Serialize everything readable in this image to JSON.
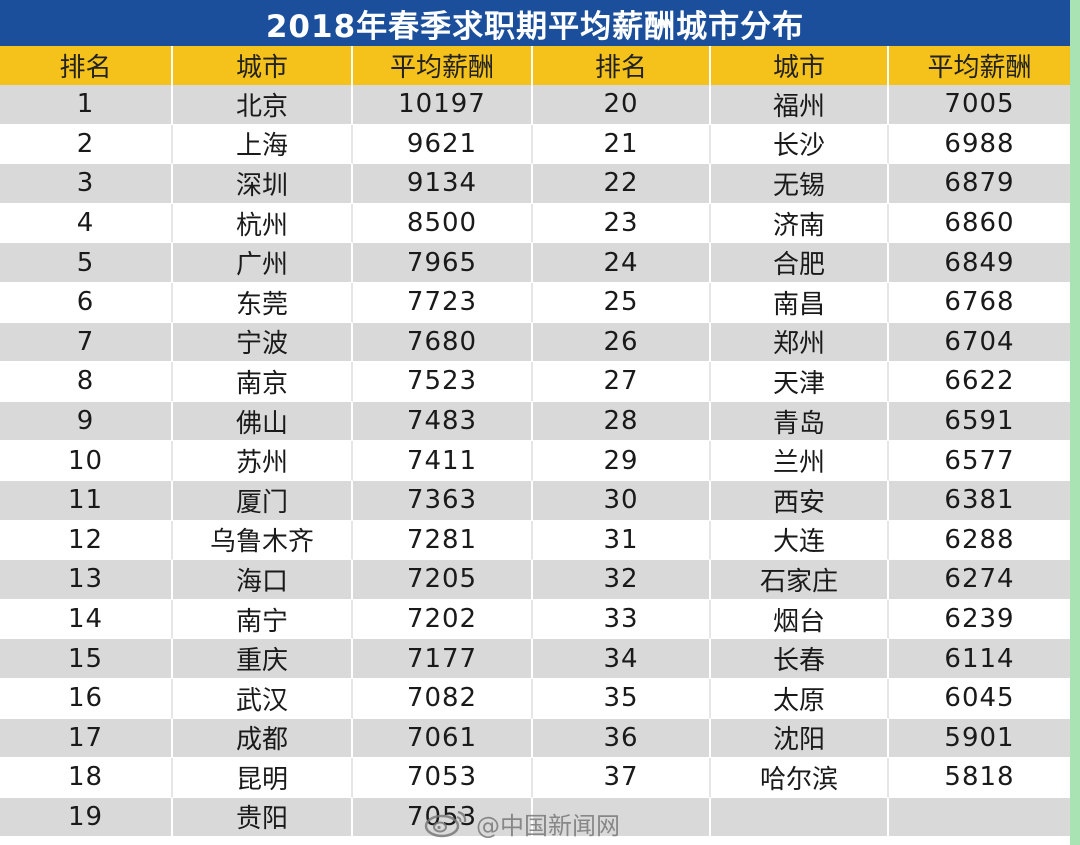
{
  "title": "2018年春季求职期平均薪酬城市分布",
  "headers": [
    "排名",
    "城市",
    "平均薪酬",
    "排名",
    "城市",
    "平均薪酬"
  ],
  "rows": [
    [
      {
        "rank": "1",
        "city": "北京",
        "salary": "10197"
      },
      {
        "rank": "20",
        "city": "福州",
        "salary": "7005"
      }
    ],
    [
      {
        "rank": "2",
        "city": "上海",
        "salary": "9621"
      },
      {
        "rank": "21",
        "city": "长沙",
        "salary": "6988"
      }
    ],
    [
      {
        "rank": "3",
        "city": "深圳",
        "salary": "9134"
      },
      {
        "rank": "22",
        "city": "无锡",
        "salary": "6879"
      }
    ],
    [
      {
        "rank": "4",
        "city": "杭州",
        "salary": "8500"
      },
      {
        "rank": "23",
        "city": "济南",
        "salary": "6860"
      }
    ],
    [
      {
        "rank": "5",
        "city": "广州",
        "salary": "7965"
      },
      {
        "rank": "24",
        "city": "合肥",
        "salary": "6849"
      }
    ],
    [
      {
        "rank": "6",
        "city": "东莞",
        "salary": "7723"
      },
      {
        "rank": "25",
        "city": "南昌",
        "salary": "6768"
      }
    ],
    [
      {
        "rank": "7",
        "city": "宁波",
        "salary": "7680"
      },
      {
        "rank": "26",
        "city": "郑州",
        "salary": "6704"
      }
    ],
    [
      {
        "rank": "8",
        "city": "南京",
        "salary": "7523"
      },
      {
        "rank": "27",
        "city": "天津",
        "salary": "6622"
      }
    ],
    [
      {
        "rank": "9",
        "city": "佛山",
        "salary": "7483"
      },
      {
        "rank": "28",
        "city": "青岛",
        "salary": "6591"
      }
    ],
    [
      {
        "rank": "10",
        "city": "苏州",
        "salary": "7411"
      },
      {
        "rank": "29",
        "city": "兰州",
        "salary": "6577"
      }
    ],
    [
      {
        "rank": "11",
        "city": "厦门",
        "salary": "7363"
      },
      {
        "rank": "30",
        "city": "西安",
        "salary": "6381"
      }
    ],
    [
      {
        "rank": "12",
        "city": "乌鲁木齐",
        "salary": "7281"
      },
      {
        "rank": "31",
        "city": "大连",
        "salary": "6288"
      }
    ],
    [
      {
        "rank": "13",
        "city": "海口",
        "salary": "7205"
      },
      {
        "rank": "32",
        "city": "石家庄",
        "salary": "6274"
      }
    ],
    [
      {
        "rank": "14",
        "city": "南宁",
        "salary": "7202"
      },
      {
        "rank": "33",
        "city": "烟台",
        "salary": "6239"
      }
    ],
    [
      {
        "rank": "15",
        "city": "重庆",
        "salary": "7177"
      },
      {
        "rank": "34",
        "city": "长春",
        "salary": "6114"
      }
    ],
    [
      {
        "rank": "16",
        "city": "武汉",
        "salary": "7082"
      },
      {
        "rank": "35",
        "city": "太原",
        "salary": "6045"
      }
    ],
    [
      {
        "rank": "17",
        "city": "成都",
        "salary": "7061"
      },
      {
        "rank": "36",
        "city": "沈阳",
        "salary": "5901"
      }
    ],
    [
      {
        "rank": "18",
        "city": "昆明",
        "salary": "7053"
      },
      {
        "rank": "37",
        "city": "哈尔滨",
        "salary": "5818"
      }
    ],
    [
      {
        "rank": "19",
        "city": "贵阳",
        "salary": "7053"
      },
      {
        "rank": "",
        "city": "",
        "salary": ""
      }
    ]
  ],
  "watermark": "@中国新闻网",
  "watermark_icon": "weibo-icon",
  "colors": {
    "title_bg": "#1b4f9c",
    "header_bg": "#f5c21b",
    "row_shade": "#d9d9d9",
    "page_border": "#a9e3b4"
  }
}
